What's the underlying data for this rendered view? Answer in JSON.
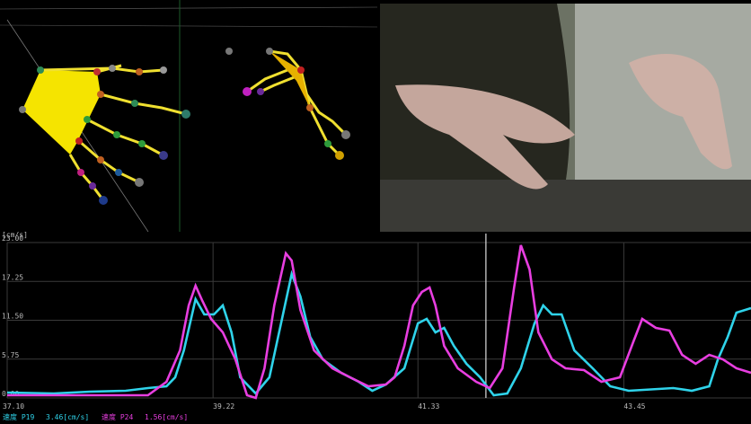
{
  "chart_data": {
    "type": "line",
    "y_label": "[cm/s]",
    "series": [
      {
        "name": "速度 P19",
        "readout": "3.46[cm/s]",
        "color": "#2fd3ea",
        "x": [
          37.1,
          37.58,
          37.95,
          38.32,
          38.55,
          38.74,
          38.83,
          38.92,
          39.04,
          39.13,
          39.23,
          39.32,
          39.41,
          39.5,
          39.66,
          39.8,
          39.94,
          40.03,
          40.12,
          40.22,
          40.35,
          40.54,
          40.72,
          40.86,
          41.0,
          41.19,
          41.33,
          41.42,
          41.51,
          41.6,
          41.7,
          41.83,
          41.97,
          42.11,
          42.25,
          42.39,
          42.53,
          42.62,
          42.71,
          42.81,
          42.94,
          43.13,
          43.31,
          43.5,
          43.96,
          44.15,
          44.33,
          44.42,
          44.52,
          44.61,
          44.76
        ],
        "values": [
          0.8,
          0.66,
          0.93,
          1.06,
          1.46,
          1.73,
          3.06,
          7.05,
          14.62,
          12.36,
          12.36,
          13.69,
          9.71,
          3.06,
          0.66,
          3.06,
          12.36,
          18.35,
          15.02,
          9.04,
          5.72,
          3.72,
          2.39,
          1.06,
          1.99,
          4.39,
          11.03,
          11.7,
          9.71,
          10.37,
          7.71,
          5.05,
          3.06,
          0.4,
          0.66,
          4.39,
          11.03,
          13.69,
          12.36,
          12.36,
          7.05,
          4.39,
          1.73,
          1.06,
          1.46,
          1.06,
          1.73,
          5.72,
          9.04,
          12.63,
          13.3
        ]
      },
      {
        "name": "速度 P24",
        "readout": "1.56[cm/s]",
        "color": "#e83ee0",
        "x": [
          37.1,
          37.58,
          38.32,
          38.55,
          38.74,
          38.88,
          38.97,
          39.04,
          39.11,
          39.2,
          39.32,
          39.45,
          39.57,
          39.66,
          39.75,
          39.85,
          39.97,
          40.03,
          40.12,
          40.26,
          40.45,
          40.63,
          40.82,
          41.0,
          41.09,
          41.19,
          41.28,
          41.37,
          41.45,
          41.51,
          41.6,
          41.74,
          41.93,
          42.07,
          42.2,
          42.32,
          42.39,
          42.48,
          42.57,
          42.71,
          42.85,
          43.04,
          43.22,
          43.41,
          43.55,
          43.64,
          43.78,
          43.92,
          44.05,
          44.19,
          44.33,
          44.47,
          44.61,
          44.76
        ],
        "values": [
          0.4,
          0.4,
          0.4,
          0.4,
          2.39,
          7.05,
          13.69,
          16.62,
          14.36,
          11.7,
          9.71,
          5.72,
          0.4,
          0.0,
          4.39,
          13.69,
          21.4,
          20.34,
          13.03,
          7.05,
          4.39,
          3.06,
          1.73,
          1.99,
          3.06,
          7.71,
          13.69,
          15.69,
          16.35,
          13.69,
          7.71,
          4.39,
          2.39,
          1.46,
          4.39,
          16.35,
          22.6,
          19.01,
          9.71,
          5.72,
          4.39,
          4.12,
          2.39,
          3.06,
          8.38,
          11.7,
          10.37,
          9.97,
          6.38,
          5.05,
          6.38,
          5.72,
          4.39,
          3.72
        ]
      }
    ],
    "xlim": [
      37.1,
      44.76
    ],
    "ylim": [
      0,
      23
    ],
    "xticks": [
      {
        "value": 37.1,
        "label": "37.10"
      },
      {
        "value": 39.22,
        "label": "39.22"
      },
      {
        "value": 41.33,
        "label": "41.33"
      },
      {
        "value": 43.45,
        "label": "43.45"
      }
    ],
    "yticks": [
      {
        "value": 23,
        "label": "23.00"
      },
      {
        "value": 17.25,
        "label": "17.25"
      },
      {
        "value": 11.5,
        "label": "11.50"
      },
      {
        "value": 5.75,
        "label": "5.75"
      },
      {
        "value": 0,
        "label": "0.00"
      }
    ],
    "grid": true,
    "cursor_x": 42.03
  }
}
